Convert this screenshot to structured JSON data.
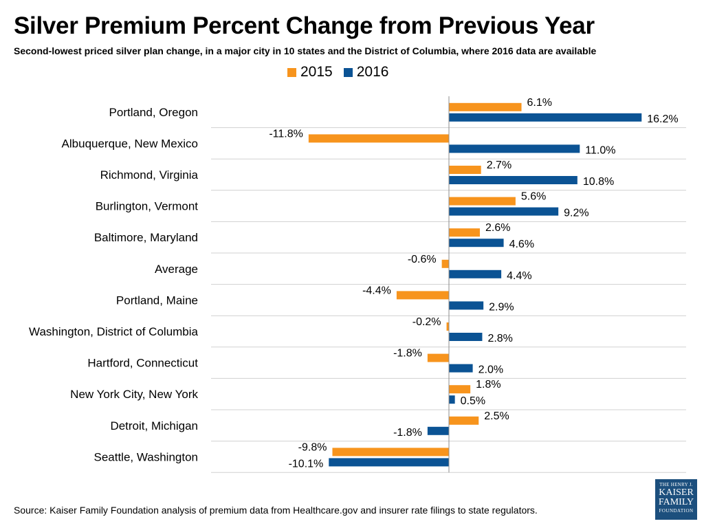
{
  "title": "Silver Premium Percent Change from Previous Year",
  "subtitle": "Second-lowest priced silver plan change, in a major city in 10 states and the District of Columbia, where 2016 data are available",
  "footer": "Source: Kaiser Family Foundation analysis of premium data from Healthcare.gov and insurer rate filings to state regulators.",
  "logo": {
    "line1": "THE HENRY J.",
    "line2": "KAISER",
    "line3": "FAMILY",
    "line4": "FOUNDATION"
  },
  "chart_data": {
    "type": "bar",
    "orientation": "horizontal",
    "title": "Silver Premium Percent Change from Previous Year",
    "xlabel": "",
    "ylabel": "",
    "unit": "%",
    "legend_position": "top-center",
    "grid": "horizontal separators",
    "categories": [
      "Portland, Oregon",
      "Albuquerque, New Mexico",
      "Richmond, Virginia",
      "Burlington, Vermont",
      "Baltimore, Maryland",
      "Average",
      "Portland, Maine",
      "Washington, District of Columbia",
      "Hartford, Connecticut",
      "New York City, New York",
      "Detroit, Michigan",
      "Seattle, Washington"
    ],
    "series": [
      {
        "name": "2015",
        "color": "#f7941d",
        "values": [
          6.1,
          -11.8,
          2.7,
          5.6,
          2.6,
          -0.6,
          -4.4,
          -0.2,
          -1.8,
          1.8,
          2.5,
          -9.8
        ],
        "labels": [
          "6.1%",
          "-11.8%",
          "2.7%",
          "5.6%",
          "2.6%",
          "-0.6%",
          "-4.4%",
          "-0.2%",
          "-1.8%",
          "1.8%",
          "2.5%",
          "-9.8%"
        ]
      },
      {
        "name": "2016",
        "color": "#0b5394",
        "values": [
          16.2,
          11.0,
          10.8,
          9.2,
          4.6,
          4.4,
          2.9,
          2.8,
          2.0,
          0.5,
          -1.8,
          -10.1
        ],
        "labels": [
          "16.2%",
          "11.0%",
          "10.8%",
          "9.2%",
          "4.6%",
          "4.4%",
          "2.9%",
          "2.8%",
          "2.0%",
          "0.5%",
          "-1.8%",
          "-10.1%"
        ]
      }
    ]
  }
}
